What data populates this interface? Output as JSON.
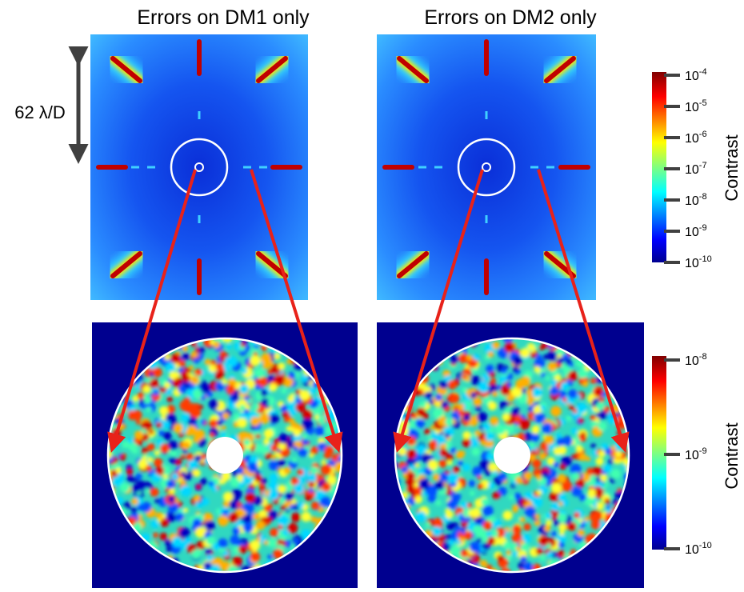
{
  "titles": [
    "Errors on DM1 only",
    "Errors on DM2 only"
  ],
  "scale_label": "62 λ/D",
  "colorbar_top": {
    "label": "Contrast",
    "ticks": [
      {
        "base": "10",
        "exp": "-4"
      },
      {
        "base": "10",
        "exp": "-5"
      },
      {
        "base": "10",
        "exp": "-6"
      },
      {
        "base": "10",
        "exp": "-7"
      },
      {
        "base": "10",
        "exp": "-8"
      },
      {
        "base": "10",
        "exp": "-9"
      },
      {
        "base": "10",
        "exp": "-10"
      }
    ]
  },
  "colorbar_bottom": {
    "label": "Contrast",
    "ticks": [
      {
        "base": "10",
        "exp": "-8"
      },
      {
        "base": "10",
        "exp": "-9"
      },
      {
        "base": "10",
        "exp": "-10"
      }
    ]
  }
}
